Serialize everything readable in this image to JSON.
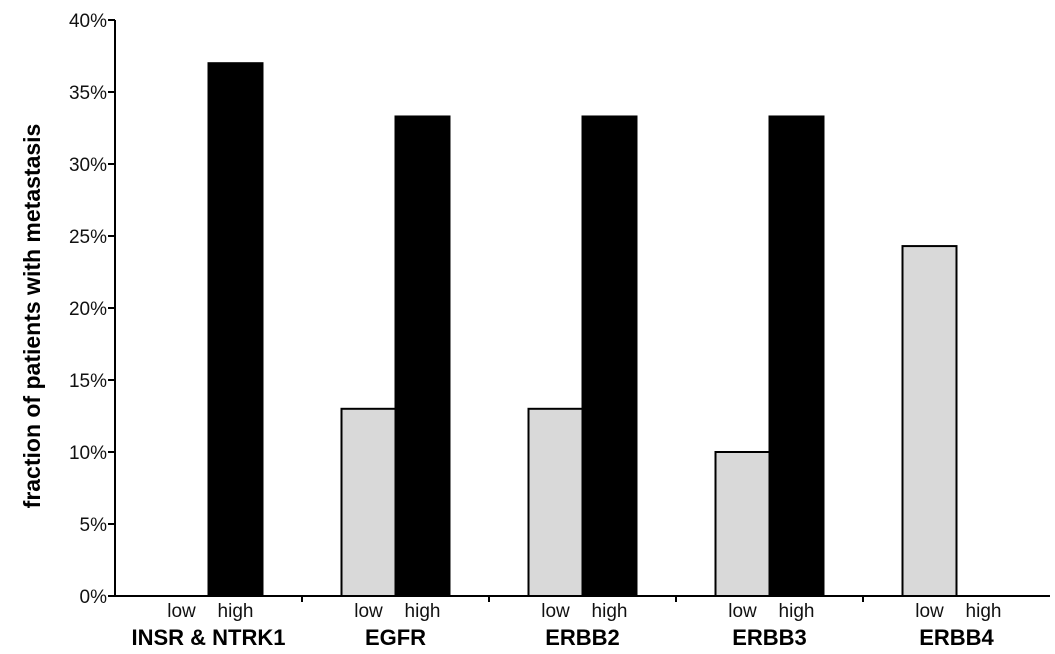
{
  "chart_data": {
    "type": "bar",
    "title": "",
    "xlabel": "",
    "ylabel": "fraction of patients with metastasis",
    "ylim": [
      0,
      40
    ],
    "yticks": [
      0,
      5,
      10,
      15,
      20,
      25,
      30,
      35,
      40
    ],
    "ytick_suffix": "%",
    "grid": false,
    "legend": "none",
    "categories": [
      "INSR & NTRK1",
      "EGFR",
      "ERBB2",
      "ERBB3",
      "ERBB4"
    ],
    "sub_labels": [
      "low",
      "high"
    ],
    "series": [
      {
        "values": [
          0,
          13,
          13,
          10,
          24.3
        ],
        "color": "#d9d9d9"
      },
      {
        "values": [
          37,
          33.3,
          33.3,
          33.3,
          0
        ],
        "color": "#000000"
      }
    ]
  }
}
